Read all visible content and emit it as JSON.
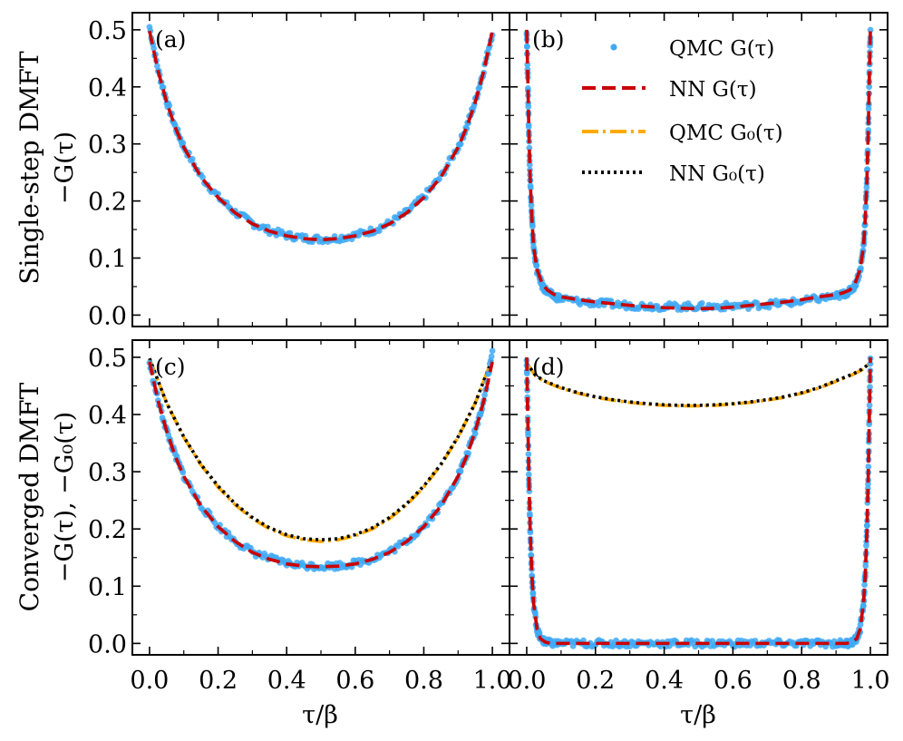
{
  "figure": {
    "row_labels": [
      {
        "title": "Single-step DMFT",
        "ylabel": "−G(τ)"
      },
      {
        "title": "Converged DMFT",
        "ylabel": "−G(τ), −G₀(τ)"
      }
    ],
    "xlabel": "τ/β",
    "legend": {
      "location": "upper-right of panel (b)",
      "entries": [
        {
          "label": "QMC G(τ)",
          "style": "dots",
          "color": "#3fa9f5"
        },
        {
          "label": "NN G(τ)",
          "style": "dashed",
          "color": "#cc0000"
        },
        {
          "label": "QMC G₀(τ)",
          "style": "dash-dot",
          "color": "#ffaa00"
        },
        {
          "label": "NN G₀(τ)",
          "style": "dotted",
          "color": "#000000"
        }
      ]
    },
    "colors": {
      "qmc_g": "#3fa9f5",
      "nn_g": "#cc0000",
      "qmc_g0": "#ffaa00",
      "nn_g0": "#000000",
      "axes": "#000000",
      "background": "#ffffff"
    }
  },
  "chart_data": [
    {
      "panel": "(a)",
      "type": "line",
      "xlim": [
        -0.05,
        1.05
      ],
      "ylim": [
        -0.02,
        0.53
      ],
      "xticks": [
        0.0,
        0.2,
        0.4,
        0.6,
        0.8,
        1.0
      ],
      "xtick_labels": [
        "0.0",
        "0.2",
        "0.4",
        "0.6",
        "0.8",
        "1.0"
      ],
      "yticks": [
        0.0,
        0.1,
        0.2,
        0.3,
        0.4,
        0.5
      ],
      "ytick_labels": [
        "0.0",
        "0.1",
        "0.2",
        "0.3",
        "0.4",
        "0.5"
      ],
      "show_xticklabels": false,
      "show_yticklabels": true,
      "series": [
        {
          "name": "QMC G(τ)",
          "kind": "scatter",
          "x": [
            0.0,
            0.025,
            0.05,
            0.075,
            0.1,
            0.15,
            0.2,
            0.25,
            0.3,
            0.35,
            0.4,
            0.45,
            0.5,
            0.55,
            0.6,
            0.65,
            0.7,
            0.75,
            0.8,
            0.85,
            0.9,
            0.925,
            0.95,
            0.975,
            1.0
          ],
          "y": [
            0.505,
            0.43,
            0.375,
            0.33,
            0.295,
            0.243,
            0.207,
            0.18,
            0.161,
            0.148,
            0.14,
            0.135,
            0.133,
            0.135,
            0.14,
            0.148,
            0.161,
            0.18,
            0.207,
            0.243,
            0.295,
            0.33,
            0.375,
            0.43,
            0.495
          ]
        },
        {
          "name": "NN G(τ)",
          "kind": "dashed",
          "x": [
            0.0,
            0.025,
            0.05,
            0.075,
            0.1,
            0.15,
            0.2,
            0.25,
            0.3,
            0.35,
            0.4,
            0.45,
            0.5,
            0.55,
            0.6,
            0.65,
            0.7,
            0.75,
            0.8,
            0.85,
            0.9,
            0.925,
            0.95,
            0.975,
            1.0
          ],
          "y": [
            0.498,
            0.428,
            0.373,
            0.329,
            0.294,
            0.242,
            0.206,
            0.179,
            0.16,
            0.147,
            0.139,
            0.134,
            0.132,
            0.134,
            0.139,
            0.147,
            0.16,
            0.179,
            0.206,
            0.242,
            0.294,
            0.329,
            0.373,
            0.428,
            0.498
          ]
        }
      ]
    },
    {
      "panel": "(b)",
      "type": "line",
      "xlim": [
        -0.05,
        1.05
      ],
      "ylim": [
        -0.02,
        0.53
      ],
      "xticks": [
        0.0,
        0.2,
        0.4,
        0.6,
        0.8,
        1.0
      ],
      "xtick_labels": [
        "0.0",
        "0.2",
        "0.4",
        "0.6",
        "0.8",
        "1.0"
      ],
      "yticks": [
        0.0,
        0.1,
        0.2,
        0.3,
        0.4,
        0.5
      ],
      "ytick_labels": [
        "0.0",
        "0.1",
        "0.2",
        "0.3",
        "0.4",
        "0.5"
      ],
      "show_xticklabels": false,
      "show_yticklabels": false,
      "series": [
        {
          "name": "QMC G(τ)",
          "kind": "scatter",
          "x": [
            0.0,
            0.003,
            0.006,
            0.01,
            0.015,
            0.02,
            0.03,
            0.045,
            0.06,
            0.08,
            0.1,
            0.15,
            0.2,
            0.25,
            0.3,
            0.35,
            0.4,
            0.45,
            0.5,
            0.55,
            0.6,
            0.65,
            0.7,
            0.75,
            0.8,
            0.85,
            0.9,
            0.92,
            0.94,
            0.955,
            0.97,
            0.98,
            0.985,
            0.99,
            0.994,
            0.997,
            1.0
          ],
          "y": [
            0.5,
            0.42,
            0.33,
            0.24,
            0.17,
            0.12,
            0.078,
            0.052,
            0.04,
            0.033,
            0.029,
            0.024,
            0.021,
            0.019,
            0.017,
            0.016,
            0.015,
            0.015,
            0.015,
            0.015,
            0.016,
            0.017,
            0.019,
            0.021,
            0.024,
            0.029,
            0.033,
            0.036,
            0.042,
            0.052,
            0.078,
            0.12,
            0.17,
            0.24,
            0.33,
            0.42,
            0.5
          ]
        },
        {
          "name": "NN G(τ)",
          "kind": "dashed",
          "x": [
            0.0,
            0.003,
            0.006,
            0.01,
            0.015,
            0.02,
            0.03,
            0.045,
            0.06,
            0.08,
            0.1,
            0.15,
            0.2,
            0.25,
            0.3,
            0.35,
            0.4,
            0.45,
            0.5,
            0.55,
            0.6,
            0.65,
            0.7,
            0.75,
            0.8,
            0.85,
            0.9,
            0.92,
            0.94,
            0.955,
            0.97,
            0.98,
            0.985,
            0.99,
            0.994,
            0.997,
            1.0
          ],
          "y": [
            0.5,
            0.42,
            0.33,
            0.24,
            0.17,
            0.12,
            0.08,
            0.055,
            0.044,
            0.036,
            0.032,
            0.027,
            0.023,
            0.02,
            0.017,
            0.015,
            0.013,
            0.012,
            0.011,
            0.012,
            0.014,
            0.017,
            0.02,
            0.023,
            0.027,
            0.032,
            0.036,
            0.039,
            0.044,
            0.055,
            0.08,
            0.12,
            0.17,
            0.24,
            0.33,
            0.42,
            0.5
          ]
        }
      ]
    },
    {
      "panel": "(c)",
      "type": "line",
      "xlim": [
        -0.05,
        1.05
      ],
      "ylim": [
        -0.02,
        0.53
      ],
      "xticks": [
        0.0,
        0.2,
        0.4,
        0.6,
        0.8,
        1.0
      ],
      "xtick_labels": [
        "0.0",
        "0.2",
        "0.4",
        "0.6",
        "0.8",
        "1.0"
      ],
      "yticks": [
        0.0,
        0.1,
        0.2,
        0.3,
        0.4,
        0.5
      ],
      "ytick_labels": [
        "0.0",
        "0.1",
        "0.2",
        "0.3",
        "0.4",
        "0.5"
      ],
      "show_xticklabels": true,
      "show_yticklabels": true,
      "series": [
        {
          "name": "QMC G(τ)",
          "kind": "scatter",
          "x": [
            0.0,
            0.025,
            0.05,
            0.075,
            0.1,
            0.15,
            0.2,
            0.25,
            0.3,
            0.35,
            0.4,
            0.45,
            0.5,
            0.55,
            0.6,
            0.65,
            0.7,
            0.75,
            0.8,
            0.85,
            0.9,
            0.925,
            0.95,
            0.975,
            1.0
          ],
          "y": [
            0.49,
            0.425,
            0.372,
            0.328,
            0.293,
            0.241,
            0.205,
            0.179,
            0.16,
            0.148,
            0.14,
            0.136,
            0.135,
            0.136,
            0.14,
            0.148,
            0.16,
            0.179,
            0.205,
            0.241,
            0.293,
            0.328,
            0.372,
            0.425,
            0.51
          ]
        },
        {
          "name": "NN G(τ)",
          "kind": "dashed",
          "x": [
            0.0,
            0.025,
            0.05,
            0.075,
            0.1,
            0.15,
            0.2,
            0.25,
            0.3,
            0.35,
            0.4,
            0.45,
            0.5,
            0.55,
            0.6,
            0.65,
            0.7,
            0.75,
            0.8,
            0.85,
            0.9,
            0.925,
            0.95,
            0.975,
            1.0
          ],
          "y": [
            0.492,
            0.424,
            0.371,
            0.327,
            0.292,
            0.24,
            0.204,
            0.178,
            0.159,
            0.147,
            0.139,
            0.135,
            0.134,
            0.135,
            0.139,
            0.147,
            0.159,
            0.178,
            0.204,
            0.24,
            0.292,
            0.327,
            0.371,
            0.424,
            0.492
          ]
        },
        {
          "name": "QMC G₀(τ)",
          "kind": "dashdot",
          "x": [
            0.0,
            0.05,
            0.1,
            0.15,
            0.2,
            0.25,
            0.3,
            0.35,
            0.4,
            0.45,
            0.5,
            0.55,
            0.6,
            0.65,
            0.7,
            0.75,
            0.8,
            0.85,
            0.9,
            0.95,
            1.0
          ],
          "y": [
            0.498,
            0.42,
            0.36,
            0.312,
            0.273,
            0.242,
            0.218,
            0.2,
            0.188,
            0.181,
            0.178,
            0.181,
            0.188,
            0.2,
            0.218,
            0.242,
            0.273,
            0.312,
            0.36,
            0.42,
            0.498
          ]
        },
        {
          "name": "NN G₀(τ)",
          "kind": "dotted",
          "x": [
            0.0,
            0.05,
            0.1,
            0.15,
            0.2,
            0.25,
            0.3,
            0.35,
            0.4,
            0.45,
            0.5,
            0.55,
            0.6,
            0.65,
            0.7,
            0.75,
            0.8,
            0.85,
            0.9,
            0.95,
            1.0
          ],
          "y": [
            0.498,
            0.42,
            0.361,
            0.313,
            0.275,
            0.244,
            0.22,
            0.202,
            0.19,
            0.183,
            0.181,
            0.183,
            0.19,
            0.202,
            0.22,
            0.244,
            0.275,
            0.313,
            0.361,
            0.42,
            0.498
          ]
        }
      ]
    },
    {
      "panel": "(d)",
      "type": "line",
      "xlim": [
        -0.05,
        1.05
      ],
      "ylim": [
        -0.02,
        0.53
      ],
      "xticks": [
        0.0,
        0.2,
        0.4,
        0.6,
        0.8,
        1.0
      ],
      "xtick_labels": [
        "0.0",
        "0.2",
        "0.4",
        "0.6",
        "0.8",
        "1.0"
      ],
      "yticks": [
        0.0,
        0.1,
        0.2,
        0.3,
        0.4,
        0.5
      ],
      "ytick_labels": [
        "0.0",
        "0.1",
        "0.2",
        "0.3",
        "0.4",
        "0.5"
      ],
      "show_xticklabels": true,
      "show_yticklabels": false,
      "series": [
        {
          "name": "QMC G(τ)",
          "kind": "scatter",
          "x": [
            0.0,
            0.003,
            0.006,
            0.01,
            0.015,
            0.02,
            0.03,
            0.04,
            0.055,
            0.07,
            0.1,
            0.15,
            0.2,
            0.25,
            0.3,
            0.35,
            0.4,
            0.45,
            0.5,
            0.55,
            0.6,
            0.65,
            0.7,
            0.75,
            0.8,
            0.85,
            0.9,
            0.93,
            0.945,
            0.96,
            0.97,
            0.98,
            0.985,
            0.99,
            0.994,
            0.997,
            1.0
          ],
          "y": [
            0.5,
            0.4,
            0.3,
            0.2,
            0.12,
            0.07,
            0.025,
            0.008,
            0.002,
            0.0,
            0.0,
            0.0,
            0.0,
            0.0,
            0.0,
            0.0,
            0.0,
            0.0,
            0.0,
            0.0,
            0.0,
            0.0,
            0.0,
            0.0,
            0.0,
            0.0,
            0.0,
            0.0,
            0.002,
            0.008,
            0.025,
            0.07,
            0.12,
            0.2,
            0.3,
            0.4,
            0.5
          ]
        },
        {
          "name": "NN G(τ)",
          "kind": "dashed",
          "x": [
            0.0,
            0.003,
            0.006,
            0.01,
            0.015,
            0.02,
            0.03,
            0.04,
            0.055,
            0.07,
            0.1,
            0.15,
            0.2,
            0.25,
            0.3,
            0.35,
            0.4,
            0.45,
            0.5,
            0.55,
            0.6,
            0.65,
            0.7,
            0.75,
            0.8,
            0.85,
            0.9,
            0.93,
            0.945,
            0.96,
            0.97,
            0.98,
            0.985,
            0.99,
            0.994,
            0.997,
            1.0
          ],
          "y": [
            0.5,
            0.4,
            0.3,
            0.2,
            0.12,
            0.07,
            0.025,
            0.008,
            0.002,
            0.0,
            0.0,
            0.0,
            0.0,
            0.0,
            0.0,
            0.0,
            0.0,
            0.0,
            0.0,
            0.0,
            0.0,
            0.0,
            0.0,
            0.0,
            0.0,
            0.0,
            0.0,
            0.0,
            0.002,
            0.008,
            0.025,
            0.07,
            0.12,
            0.2,
            0.3,
            0.4,
            0.5
          ]
        },
        {
          "name": "QMC G₀(τ)",
          "kind": "dashdot",
          "x": [
            0.0,
            0.025,
            0.05,
            0.1,
            0.15,
            0.2,
            0.25,
            0.3,
            0.35,
            0.4,
            0.45,
            0.5,
            0.55,
            0.6,
            0.65,
            0.7,
            0.75,
            0.8,
            0.85,
            0.9,
            0.95,
            0.975,
            1.0
          ],
          "y": [
            0.49,
            0.468,
            0.458,
            0.446,
            0.437,
            0.43,
            0.425,
            0.421,
            0.418,
            0.416,
            0.415,
            0.415,
            0.416,
            0.418,
            0.421,
            0.425,
            0.43,
            0.437,
            0.446,
            0.458,
            0.47,
            0.478,
            0.49
          ]
        },
        {
          "name": "NN G₀(τ)",
          "kind": "dotted",
          "x": [
            0.0,
            0.025,
            0.05,
            0.1,
            0.15,
            0.2,
            0.25,
            0.3,
            0.35,
            0.4,
            0.45,
            0.5,
            0.55,
            0.6,
            0.65,
            0.7,
            0.75,
            0.8,
            0.85,
            0.9,
            0.95,
            0.975,
            1.0
          ],
          "y": [
            0.49,
            0.469,
            0.459,
            0.447,
            0.438,
            0.431,
            0.426,
            0.422,
            0.419,
            0.417,
            0.416,
            0.416,
            0.417,
            0.419,
            0.422,
            0.426,
            0.431,
            0.438,
            0.447,
            0.459,
            0.471,
            0.479,
            0.49
          ]
        }
      ]
    }
  ]
}
